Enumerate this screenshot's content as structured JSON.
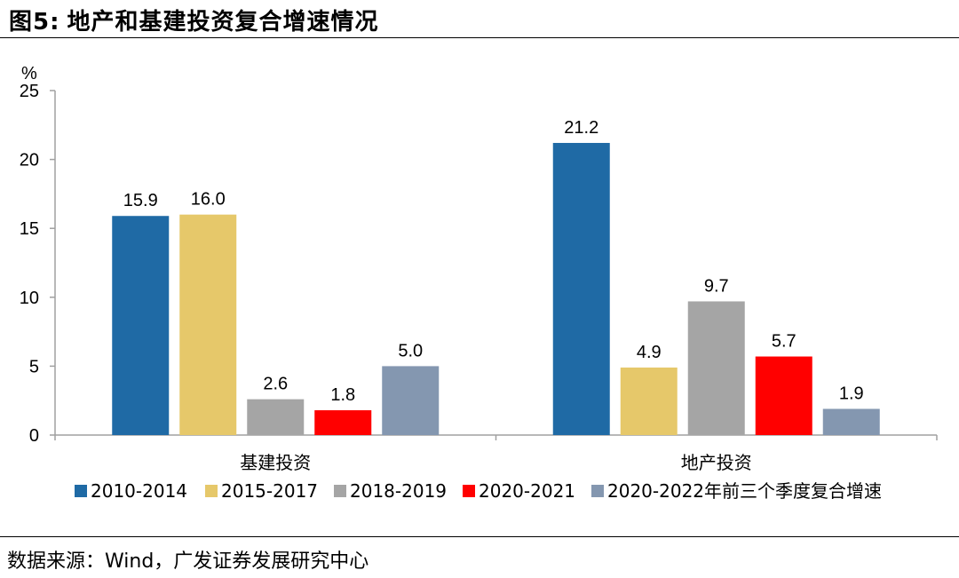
{
  "figure": {
    "number": "图5:",
    "title": "地产和基建投资复合增速情况"
  },
  "source": {
    "label": "数据来源：",
    "text": "Wind，广发证券发展研究中心"
  },
  "colors": {
    "series": [
      "#1f6aa5",
      "#e6c86a",
      "#a5a5a5",
      "#ff0000",
      "#8497b0"
    ],
    "axis": "#a0a0a0"
  },
  "chart_data": {
    "type": "bar",
    "title": "地产和基建投资复合增速情况",
    "ylabel": "%",
    "xlabel": "",
    "ylim": [
      0,
      25
    ],
    "yticks": [
      0,
      5,
      10,
      15,
      20,
      25
    ],
    "grid": false,
    "legend_position": "bottom",
    "categories": [
      "基建投资",
      "地产投资"
    ],
    "series": [
      {
        "name": "2010-2014",
        "values": [
          15.9,
          21.2
        ]
      },
      {
        "name": "2015-2017",
        "values": [
          16.0,
          4.9
        ]
      },
      {
        "name": "2018-2019",
        "values": [
          2.6,
          9.7
        ]
      },
      {
        "name": "2020-2021",
        "values": [
          1.8,
          5.7
        ]
      },
      {
        "name": "2020-2022年前三个季度复合增速",
        "values": [
          5.0,
          1.9
        ]
      }
    ]
  }
}
